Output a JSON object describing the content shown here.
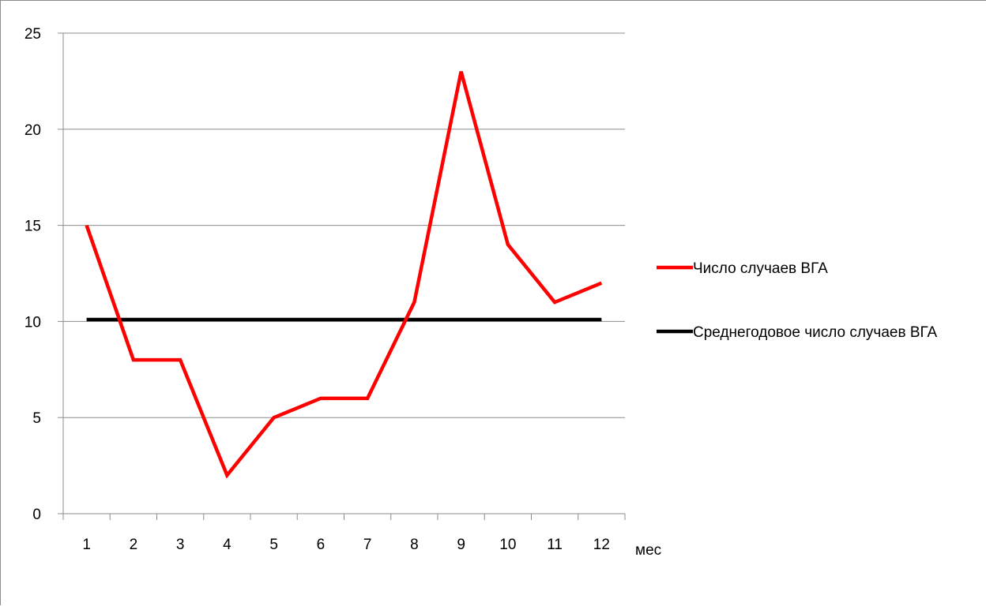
{
  "chart_data": {
    "type": "line",
    "title": "",
    "xlabel": "мес",
    "ylabel": "",
    "categories": [
      "1",
      "2",
      "3",
      "4",
      "5",
      "6",
      "7",
      "8",
      "9",
      "10",
      "11",
      "12"
    ],
    "ylim": [
      0,
      25
    ],
    "yticks": [
      0,
      5,
      10,
      15,
      20,
      25
    ],
    "grid": "horizontal",
    "legend_position": "right",
    "series": [
      {
        "name": "Число случаев ВГА",
        "color": "#ff0000",
        "values": [
          15,
          8,
          8,
          2,
          5,
          6,
          6,
          11,
          23,
          14,
          11,
          12
        ]
      },
      {
        "name": "Среднегодовое число случаев ВГА",
        "color": "#000000",
        "values": [
          10.1,
          10.1,
          10.1,
          10.1,
          10.1,
          10.1,
          10.1,
          10.1,
          10.1,
          10.1,
          10.1,
          10.1
        ]
      }
    ]
  }
}
